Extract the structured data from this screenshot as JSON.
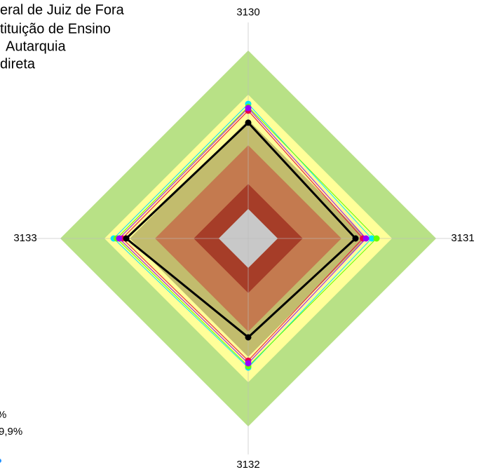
{
  "chart_data": {
    "type": "radar",
    "categories": [
      "3130",
      "3131",
      "3132",
      "3133"
    ],
    "rlim": [
      0,
      100
    ],
    "bands": [
      {
        "value": 100,
        "color": "#b8e186"
      },
      {
        "value": 76.5,
        "color": "#ffff99"
      },
      {
        "value": 63,
        "color": "#c2bc6d"
      },
      {
        "value": 49.6,
        "color": "#c47a4f"
      },
      {
        "value": 29,
        "color": "#a63d28"
      },
      {
        "value": 15.7,
        "color": "#c8c8c8"
      }
    ],
    "series": [
      {
        "color": "#00e5ff",
        "values": [
          71.6,
          65.7,
          68.7,
          71.6
        ]
      },
      {
        "color": "#66ff00",
        "values": [
          70,
          68.3,
          68,
          70
        ]
      },
      {
        "color": "#e8004a",
        "values": [
          68,
          61,
          65,
          67
        ]
      },
      {
        "color": "#9900ff",
        "values": [
          69.4,
          62.7,
          66.4,
          68.7
        ]
      },
      {
        "color": "#000000",
        "values": [
          61.6,
          57.1,
          52.6,
          64.9
        ]
      }
    ],
    "legend_lines": [
      "eral de Juiz de Fora",
      "tituição de Ensino",
      "Autarquia",
      "direta"
    ],
    "footnote_lines": [
      "%",
      "9,9%"
    ]
  }
}
